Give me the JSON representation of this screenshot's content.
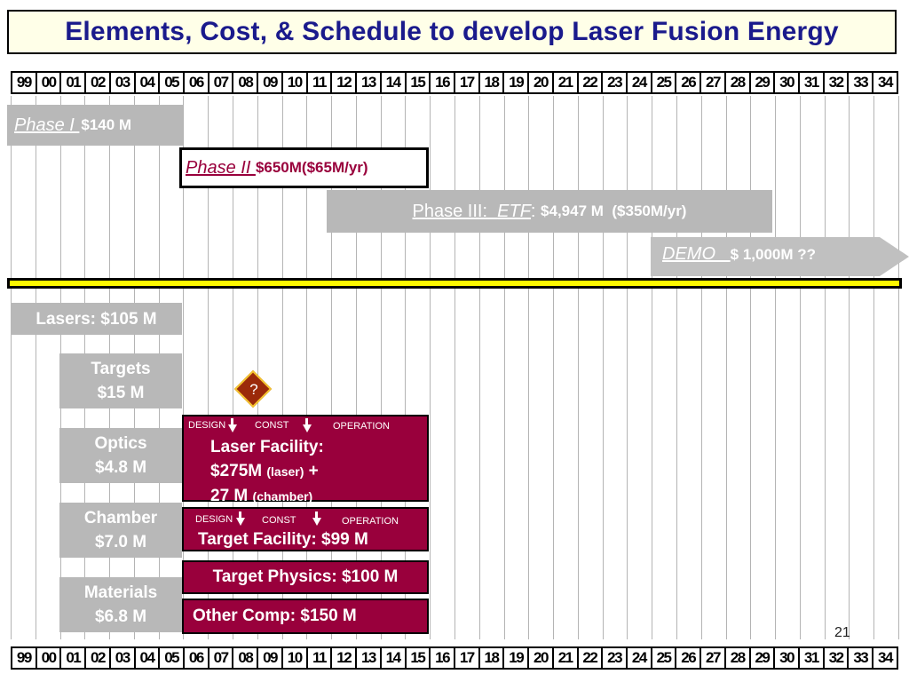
{
  "title": "Elements, Cost, & Schedule to develop Laser Fusion Energy",
  "years": [
    "99",
    "00",
    "01",
    "02",
    "03",
    "04",
    "05",
    "06",
    "07",
    "08",
    "09",
    "10",
    "11",
    "12",
    "13",
    "14",
    "15",
    "16",
    "17",
    "18",
    "19",
    "20",
    "21",
    "22",
    "23",
    "24",
    "25",
    "26",
    "27",
    "28",
    "29",
    "30",
    "31",
    "32",
    "33",
    "34"
  ],
  "phases": {
    "phase1": {
      "name": "Phase I ",
      "cost": "$140 M"
    },
    "phase2": {
      "name": "Phase II ",
      "cost": "$650M($65M/yr)"
    },
    "phase3": {
      "name": "Phase III:  ",
      "etf": "ETF",
      "colon": ": ",
      "cost": "$4,947 M  ($350M/yr)"
    },
    "demo": {
      "name": "DEMO   ",
      "cost": "$ 1,000M ??"
    }
  },
  "elements": {
    "lasers": "Lasers: $105 M",
    "targets": {
      "line1": "Targets",
      "line2": "$15 M"
    },
    "optics": {
      "line1": "Optics",
      "line2": "$4.8 M"
    },
    "chamber": {
      "line1": "Chamber",
      "line2": "$7.0 M"
    },
    "materials": {
      "line1": "Materials",
      "line2": "$6.8 M"
    }
  },
  "question_mark": "?",
  "laser_facility": {
    "design": "DESIGN",
    "const": "CONST",
    "operation": "OPERATION",
    "line1": "Laser Facility:",
    "line2_main": "$275M ",
    "line2_small": "(laser)",
    "line2_tail": " +",
    "line3_main": "27 M ",
    "line3_small": "(chamber)"
  },
  "target_facility": {
    "design": "DESIGN",
    "const": "CONST",
    "operation": "OPERATION",
    "label": "Target Facility: $99 M"
  },
  "target_physics": "Target Physics: $100 M",
  "other_comp": "Other Comp: $150 M",
  "page_number": "21",
  "colors": {
    "title_text": "#1a1a8c",
    "title_bg": "#ffffe8",
    "grey_bar": "#b8b8b8",
    "maroon": "#99003c",
    "yellow_band": "#fdf900",
    "demo_bar": "#c0c0c0"
  }
}
